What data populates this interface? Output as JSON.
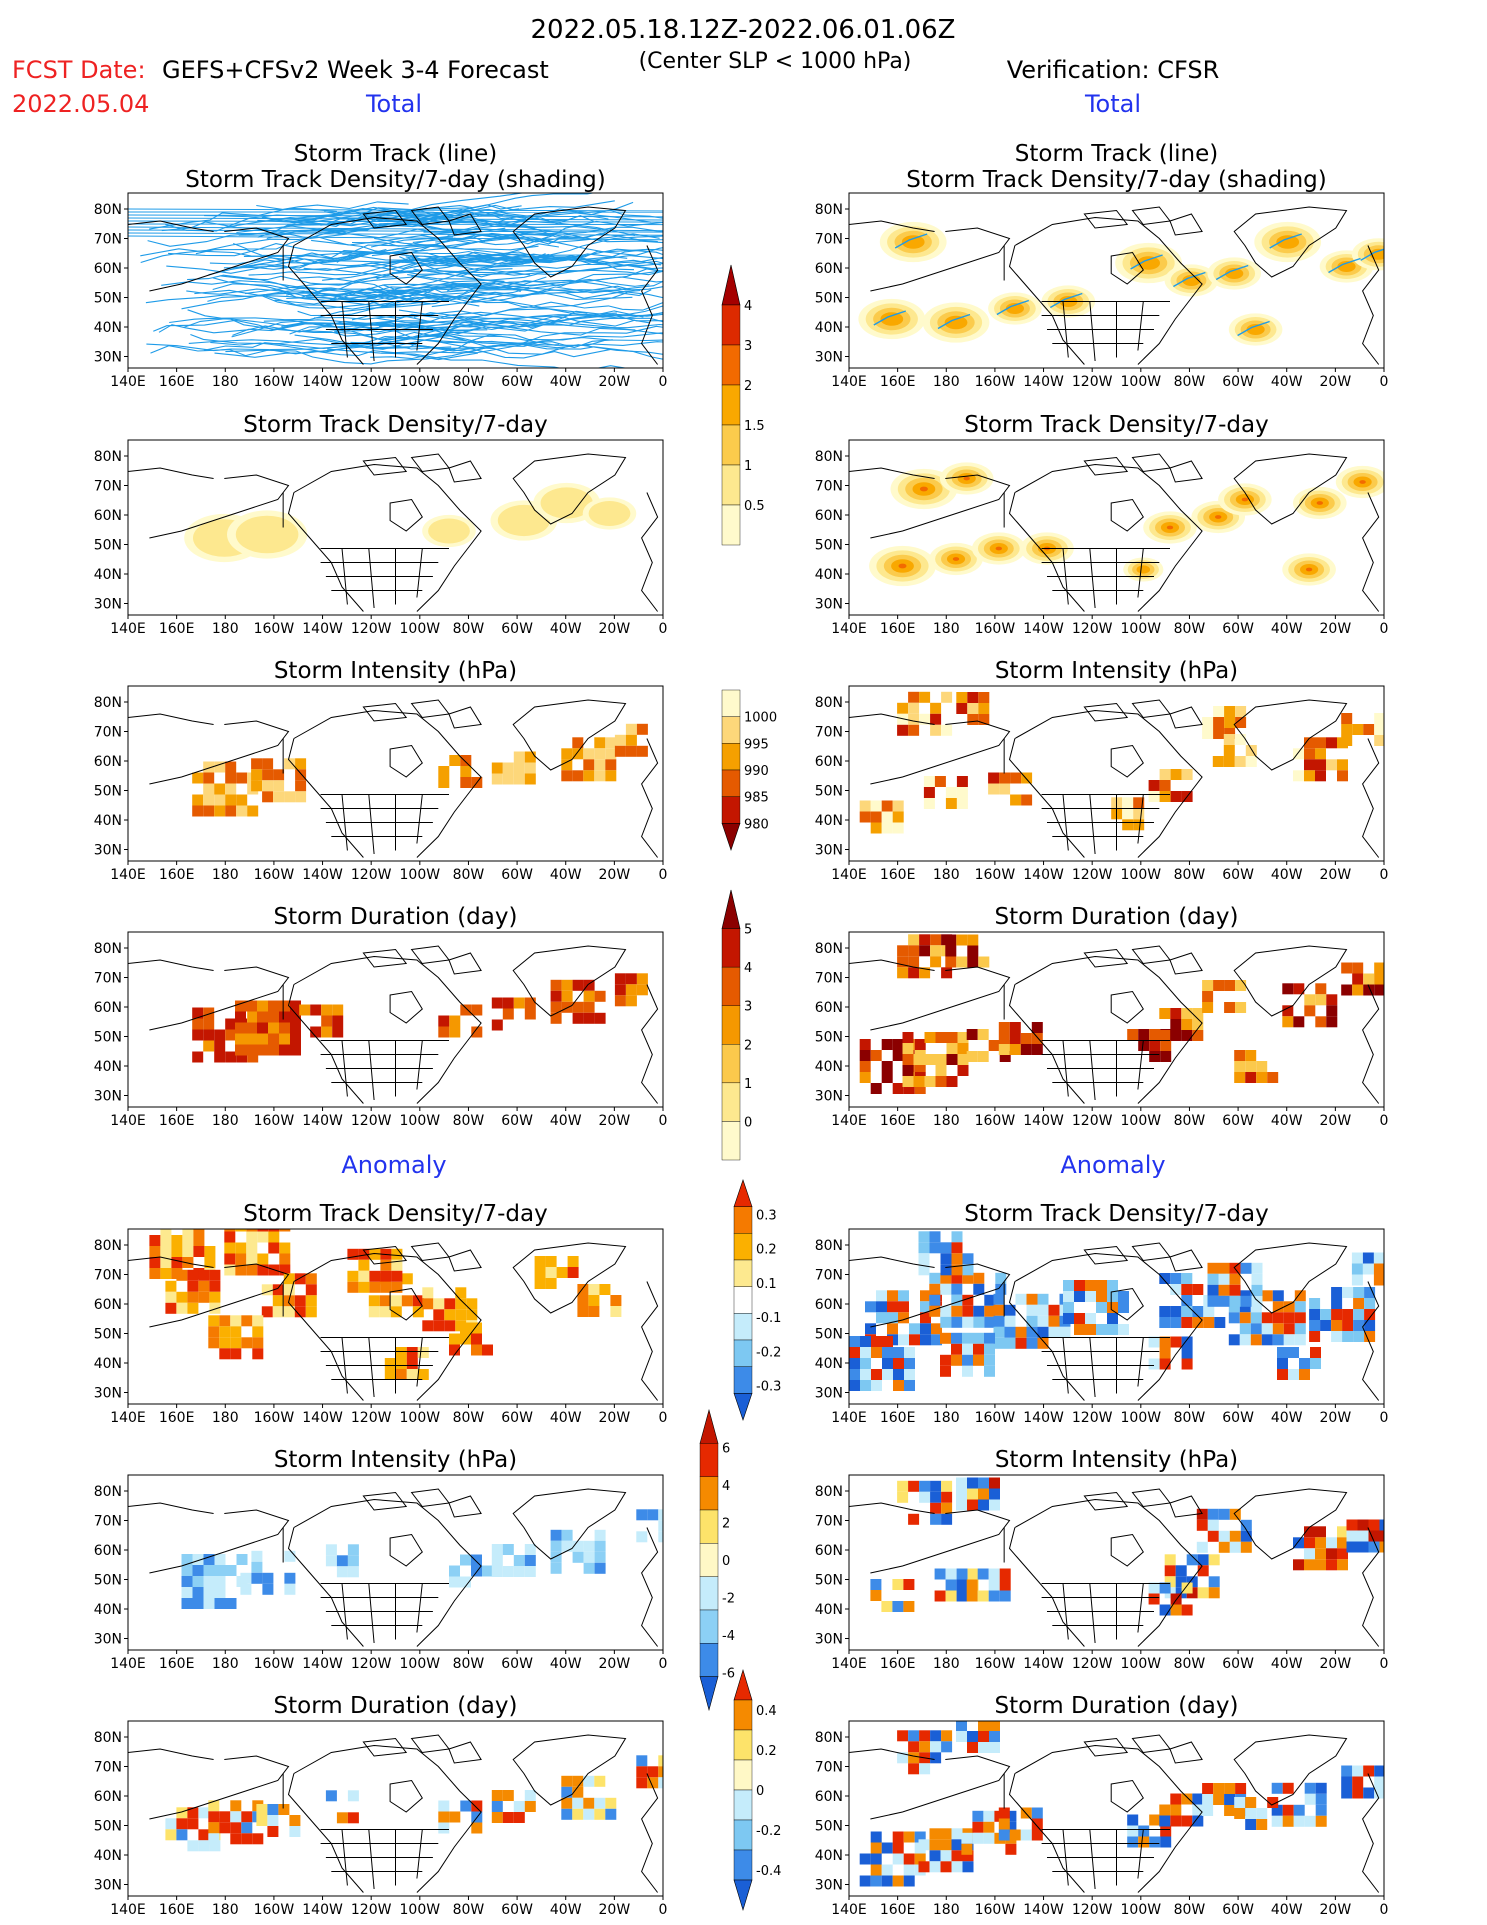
{
  "header": {
    "time_range": "2022.05.18.12Z-2022.06.01.06Z",
    "fcst_label": "FCST Date:",
    "fcst_date": "2022.05.04",
    "model": "GEFS+CFSv2 Week 3-4 Forecast",
    "criterion": "(Center SLP < 1000 hPa)",
    "verification": "Verification: CFSR",
    "left_total": "Total",
    "right_total": "Total",
    "left_anomaly": "Anomaly",
    "right_anomaly": "Anomaly"
  },
  "axes": {
    "lat_ticks": [
      "80N",
      "70N",
      "60N",
      "50N",
      "40N",
      "30N"
    ],
    "lon_ticks": [
      "140E",
      "160E",
      "180",
      "160W",
      "140W",
      "120W",
      "100W",
      "80W",
      "60W",
      "40W",
      "20W",
      "0"
    ]
  },
  "panels": [
    {
      "id": "track-left",
      "title1": "Storm Track (line)",
      "title2": "Storm Track Density/7-day (shading)",
      "kind": "tracks"
    },
    {
      "id": "track-right",
      "title1": "Storm Track (line)",
      "title2": "Storm Track Density/7-day (shading)",
      "kind": "tracks-obs"
    },
    {
      "id": "density-left",
      "title1": "Storm Track Density/7-day",
      "kind": "density"
    },
    {
      "id": "density-right",
      "title1": "Storm Track Density/7-day",
      "kind": "density-obs"
    },
    {
      "id": "intensity-left",
      "title1": "Storm Intensity (hPa)",
      "kind": "intensity"
    },
    {
      "id": "intensity-right",
      "title1": "Storm Intensity (hPa)",
      "kind": "intensity-obs"
    },
    {
      "id": "duration-left",
      "title1": "Storm Duration (day)",
      "kind": "duration"
    },
    {
      "id": "duration-right",
      "title1": "Storm Duration (day)",
      "kind": "duration-obs"
    },
    {
      "id": "anom-density-left",
      "title1": "Storm Track Density/7-day",
      "kind": "anom-density"
    },
    {
      "id": "anom-density-right",
      "title1": "Storm Track Density/7-day",
      "kind": "anom-density-obs"
    },
    {
      "id": "anom-intensity-left",
      "title1": "Storm Intensity (hPa)",
      "kind": "anom-intensity"
    },
    {
      "id": "anom-intensity-right",
      "title1": "Storm Intensity (hPa)",
      "kind": "anom-intensity-obs"
    },
    {
      "id": "anom-duration-left",
      "title1": "Storm Duration (day)",
      "kind": "anom-duration"
    },
    {
      "id": "anom-duration-right",
      "title1": "Storm Duration (day)",
      "kind": "anom-duration-obs"
    }
  ],
  "colorbars": [
    {
      "id": "cb-density",
      "labels": [
        "4",
        "3",
        "2",
        "1.5",
        "1",
        "0.5"
      ],
      "colors": [
        "#a50000",
        "#dd2a00",
        "#f26a00",
        "#f9a800",
        "#fbcb4c",
        "#fde88f",
        "#fffacc"
      ]
    },
    {
      "id": "cb-intensity",
      "labels": [
        "1000",
        "995",
        "990",
        "985",
        "980"
      ],
      "colors": [
        "#fffacc",
        "#fdd77a",
        "#f5a000",
        "#e55a00",
        "#c31600",
        "#8b0000"
      ]
    },
    {
      "id": "cb-duration",
      "labels": [
        "5",
        "4",
        "3",
        "2",
        "1",
        "0"
      ],
      "colors": [
        "#8b0000",
        "#c31600",
        "#e55a00",
        "#f59800",
        "#fbc94c",
        "#fde88f",
        "#fffacc"
      ]
    },
    {
      "id": "cb-anom-density",
      "labels": [
        "0.3",
        "0.2",
        "0.1",
        "-0.1",
        "-0.2",
        "-0.3"
      ],
      "colors": [
        "#e62900",
        "#f57a00",
        "#fbb000",
        "#fde98f",
        "#ffffff",
        "#c5ecfb",
        "#7dc8f2",
        "#3d8be8",
        "#1a5fd6"
      ]
    },
    {
      "id": "cb-anom-intensity",
      "labels": [
        "6",
        "4",
        "2",
        "0",
        "-2",
        "-4",
        "-6"
      ],
      "colors": [
        "#c31600",
        "#e62900",
        "#f58a00",
        "#fde36a",
        "#fff8c6",
        "#c5ecfb",
        "#8cd0f5",
        "#3d8be8",
        "#1a5fd6"
      ]
    },
    {
      "id": "cb-anom-duration",
      "labels": [
        "0.4",
        "0.2",
        "0",
        "-0.2",
        "-0.4"
      ],
      "colors": [
        "#e62900",
        "#f58a00",
        "#fde36a",
        "#fff8c6",
        "#c5ecfb",
        "#7dc8f2",
        "#3d8be8",
        "#1a5fd6"
      ]
    }
  ],
  "colors": {
    "track_line": "#1e9be8",
    "fcst_red": "#ee2222",
    "label_blue": "#2233ee",
    "title_black": "#000000"
  }
}
